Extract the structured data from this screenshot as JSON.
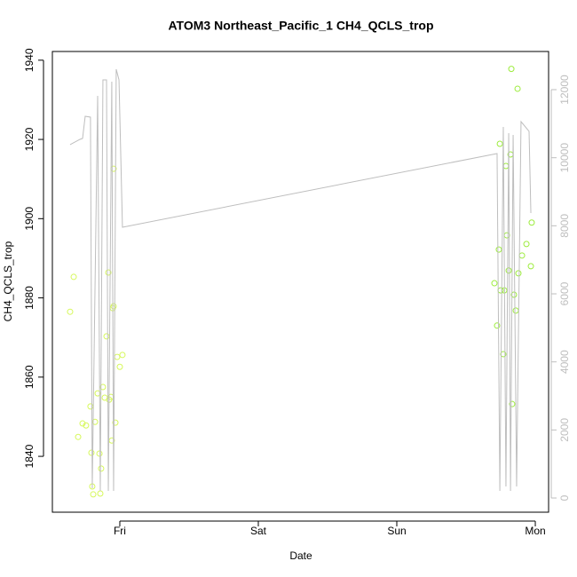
{
  "chart_data": {
    "type": "scatter",
    "title": "ATOM3 Northeast_Pacific_1 CH4_QCLS_trop",
    "xlabel": "Date",
    "ylabel": "CH4_QCLS_trop",
    "xlim": [
      -0.487,
      3.096
    ],
    "xticks": [
      {
        "value": 0,
        "label": "Fri"
      },
      {
        "value": 1,
        "label": "Sat"
      },
      {
        "value": 2,
        "label": "Sun"
      },
      {
        "value": 3,
        "label": "Mon"
      }
    ],
    "ylim": [
      1825.9,
      1942.2
    ],
    "yticks": [
      1840,
      1860,
      1880,
      1900,
      1920,
      1940
    ],
    "y2lim": [
      -417,
      13122
    ],
    "y2ticks": [
      0,
      2000,
      4000,
      6000,
      8000,
      10000,
      12000
    ],
    "y2color": "#bebebe",
    "series": [
      {
        "type": "points",
        "color": "#d6f85a",
        "x": [
          -0.359,
          -0.333,
          -0.301,
          -0.269,
          -0.244,
          -0.212,
          -0.205,
          -0.199,
          -0.192,
          -0.179,
          -0.16,
          -0.147,
          -0.141,
          -0.135,
          -0.122,
          -0.109,
          -0.096,
          -0.083,
          -0.077,
          -0.064,
          -0.058,
          -0.051,
          -0.045,
          -0.045,
          -0.032,
          -0.019,
          0,
          0.019
        ],
        "values": [
          1876.5,
          1885.3,
          1844.9,
          1848.3,
          1847.8,
          1852.6,
          1840.9,
          1832.4,
          1830.4,
          1848.7,
          1855.9,
          1840.7,
          1830.6,
          1836.9,
          1857.5,
          1854.8,
          1870.3,
          1886.4,
          1854.3,
          1855.0,
          1844.0,
          1877.4,
          1877.9,
          1912.6,
          1848.5,
          1865.1,
          1862.6,
          1865.6
        ]
      },
      {
        "type": "points",
        "color": "#9cec3c",
        "x": [
          2.705,
          2.724,
          2.737,
          2.744,
          2.75,
          2.769,
          2.776,
          2.788,
          2.795,
          2.808,
          2.821,
          2.827,
          2.833,
          2.846,
          2.859,
          2.872,
          2.878,
          2.904,
          2.936,
          2.968,
          2.974
        ],
        "values": [
          1883.7,
          1873.0,
          1892.2,
          1918.9,
          1881.9,
          1865.8,
          1881.9,
          1913.3,
          1895.8,
          1886.9,
          1916.2,
          1937.8,
          1853.2,
          1880.8,
          1876.8,
          1932.8,
          1886.2,
          1890.7,
          1893.6,
          1888.0,
          1899.0
        ]
      },
      {
        "type": "line",
        "axis": "y2",
        "color": "#bebebe",
        "x": [
          -0.359,
          -0.288,
          -0.269,
          -0.25,
          -0.212,
          -0.199,
          -0.16,
          -0.141,
          -0.122,
          -0.096,
          -0.083,
          -0.058,
          -0.045,
          -0.026,
          -0.006,
          0.019,
          2.724,
          2.744,
          2.769,
          2.788,
          2.808,
          2.821,
          2.84,
          2.865,
          2.897,
          2.955,
          2.968
        ],
        "values": [
          10384,
          10540,
          10566,
          11218,
          11192,
          287,
          11818,
          209,
          12288,
          12288,
          209,
          12236,
          209,
          12601,
          12288,
          7957,
          10123,
          209,
          10905,
          339,
          10723,
          209,
          10671,
          339,
          11061,
          10775,
          8374
        ]
      }
    ]
  }
}
